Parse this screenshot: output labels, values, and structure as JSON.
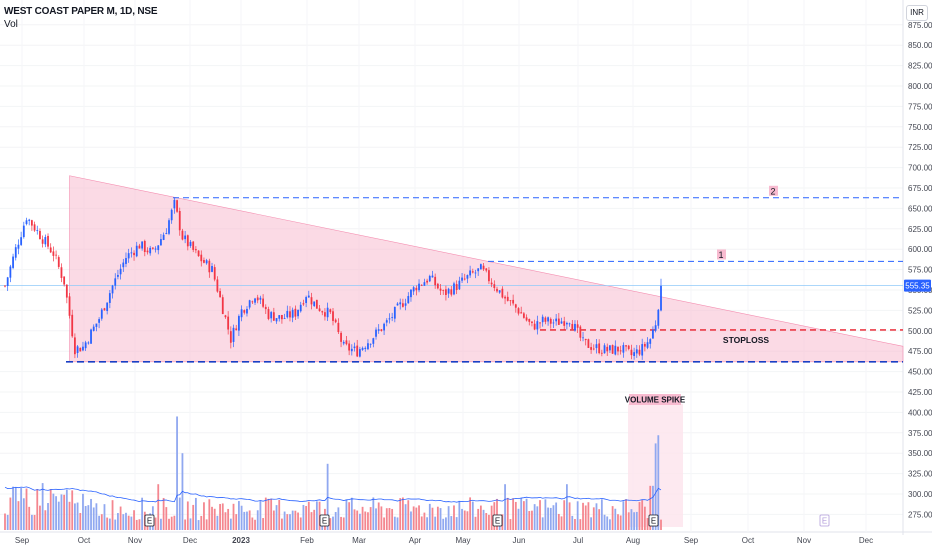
{
  "header": {
    "symbol_line": "WEST COAST PAPER M, 1D, NSE",
    "volume_label": "Vol",
    "currency": "INR"
  },
  "colors": {
    "up": "#2962ff",
    "down": "#f23645",
    "triangle_fill": "#f8bbd0",
    "volume_spike_fill": "#fce4ec",
    "target_line": "#2962ff",
    "stoploss_line": "#e91e2b",
    "last_price_bg": "#2962ff"
  },
  "chart_data": {
    "type": "candlestick",
    "price_axis": {
      "ticks": [
        "875.00",
        "850.00",
        "825.00",
        "800.00",
        "775.00",
        "750.00",
        "725.00",
        "700.00",
        "675.00",
        "650.00",
        "625.00",
        "600.00",
        "575.00",
        "550.00",
        "525.00",
        "500.00",
        "475.00",
        "450.00",
        "425.00",
        "400.00",
        "375.00",
        "350.00",
        "325.00",
        "300.00",
        "275.00"
      ],
      "range": [
        262,
        887
      ]
    },
    "x_axis": {
      "labels": [
        "Sep",
        "Oct",
        "Nov",
        "Dec",
        "2023",
        "Feb",
        "Mar",
        "Apr",
        "May",
        "Jun",
        "Jul",
        "Aug",
        "Sep",
        "Oct",
        "Nov",
        "Dec"
      ]
    },
    "last_price": "555.35",
    "annotations": {
      "target_1": {
        "label": "1",
        "price": 585
      },
      "target_2": {
        "label": "2",
        "price": 663
      },
      "stoploss": {
        "label": "STOPLOSS",
        "price": 501
      },
      "support": {
        "price": 462
      },
      "volume_spike": {
        "label": "VOLUME SPIKE"
      }
    },
    "earnings_markers": [
      "E",
      "E",
      "E",
      "E",
      "E"
    ],
    "price_path": [
      {
        "t": 0,
        "p": 555
      },
      {
        "t": 4,
        "p": 600
      },
      {
        "t": 8,
        "p": 640
      },
      {
        "t": 12,
        "p": 622
      },
      {
        "t": 18,
        "p": 595
      },
      {
        "t": 22,
        "p": 560
      },
      {
        "t": 26,
        "p": 478
      },
      {
        "t": 29,
        "p": 480
      },
      {
        "t": 35,
        "p": 515
      },
      {
        "t": 40,
        "p": 555
      },
      {
        "t": 45,
        "p": 590
      },
      {
        "t": 50,
        "p": 605
      },
      {
        "t": 55,
        "p": 595
      },
      {
        "t": 60,
        "p": 625
      },
      {
        "t": 63,
        "p": 655
      },
      {
        "t": 66,
        "p": 615
      },
      {
        "t": 72,
        "p": 590
      },
      {
        "t": 77,
        "p": 575
      },
      {
        "t": 80,
        "p": 540
      },
      {
        "t": 84,
        "p": 490
      },
      {
        "t": 88,
        "p": 525
      },
      {
        "t": 93,
        "p": 545
      },
      {
        "t": 98,
        "p": 520
      },
      {
        "t": 103,
        "p": 515
      },
      {
        "t": 108,
        "p": 522
      },
      {
        "t": 112,
        "p": 545
      },
      {
        "t": 116,
        "p": 530
      },
      {
        "t": 121,
        "p": 520
      },
      {
        "t": 126,
        "p": 480
      },
      {
        "t": 131,
        "p": 475
      },
      {
        "t": 136,
        "p": 490
      },
      {
        "t": 142,
        "p": 510
      },
      {
        "t": 148,
        "p": 535
      },
      {
        "t": 153,
        "p": 555
      },
      {
        "t": 158,
        "p": 565
      },
      {
        "t": 163,
        "p": 545
      },
      {
        "t": 168,
        "p": 555
      },
      {
        "t": 173,
        "p": 568
      },
      {
        "t": 177,
        "p": 575
      },
      {
        "t": 181,
        "p": 560
      },
      {
        "t": 186,
        "p": 540
      },
      {
        "t": 191,
        "p": 525
      },
      {
        "t": 196,
        "p": 505
      },
      {
        "t": 200,
        "p": 512
      },
      {
        "t": 205,
        "p": 510
      },
      {
        "t": 210,
        "p": 515
      },
      {
        "t": 215,
        "p": 485
      },
      {
        "t": 219,
        "p": 480
      },
      {
        "t": 224,
        "p": 476
      },
      {
        "t": 229,
        "p": 478
      },
      {
        "t": 233,
        "p": 470
      },
      {
        "t": 237,
        "p": 478
      },
      {
        "t": 240,
        "p": 490
      },
      {
        "t": 242,
        "p": 510
      },
      {
        "t": 244,
        "p": 555
      }
    ],
    "volume": [
      {
        "t": 0,
        "v": 300
      },
      {
        "t": 20,
        "v": 298
      },
      {
        "t": 40,
        "v": 290
      },
      {
        "t": 63,
        "v": 320
      },
      {
        "t": 64,
        "v": 395
      },
      {
        "t": 66,
        "v": 350
      },
      {
        "t": 120,
        "v": 335
      },
      {
        "t": 240,
        "v": 318
      },
      {
        "t": 242,
        "v": 360
      },
      {
        "t": 243,
        "v": 370
      }
    ]
  },
  "earnings": [
    "E",
    "E",
    "E",
    "E",
    "E"
  ]
}
